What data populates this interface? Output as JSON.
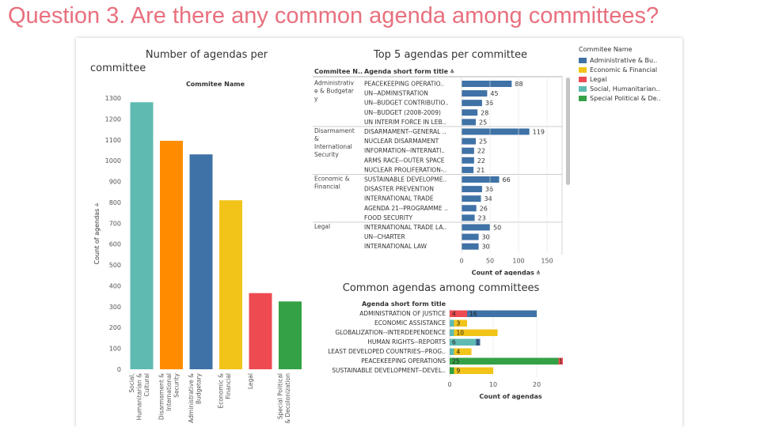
{
  "slide": {
    "title": "Question 3. Are there any common agenda among committees?"
  },
  "colors": {
    "Administrative & Budgetary": "#3f72a6",
    "Economic & Financial": "#f2c419",
    "Legal": "#ee4a52",
    "Social, Humanitarian & Cultural": "#5fbbb2",
    "Special Political & Decolonization": "#35a146",
    "Disarmament & International Security": "#ff8c00"
  },
  "legend": {
    "title": "Commitee Name",
    "items": [
      {
        "label": "Administrative & Bu..",
        "color": "#3f72a6"
      },
      {
        "label": "Economic & Financial",
        "color": "#f2c419"
      },
      {
        "label": "Legal",
        "color": "#ee4a52"
      },
      {
        "label": "Social, Humanitarian..",
        "color": "#5fbbb2"
      },
      {
        "label": "Special Political & De..",
        "color": "#35a146"
      }
    ]
  },
  "chart_data": [
    {
      "type": "bar",
      "title": "Number of agendas per committee",
      "header": "Commitee Name",
      "ylabel": "Count of agendas",
      "ylim": [
        0,
        1300
      ],
      "yticks": [
        0,
        100,
        200,
        300,
        400,
        500,
        600,
        700,
        800,
        900,
        1000,
        1100,
        1200,
        1300
      ],
      "categories": [
        "Social, Humanitarian & Cultural",
        "Disarmament & International Security",
        "Administrative & Budgetary",
        "Economic & Financial",
        "Legal",
        "Special Political & Decolonization"
      ],
      "category_labels": [
        [
          "Social,",
          "Humanitarian &",
          "Cultural"
        ],
        [
          "Disarmament &",
          "International",
          "Security"
        ],
        [
          "Administrative &",
          "Budgetary"
        ],
        [
          "Economic &",
          "Financial"
        ],
        [
          "Legal"
        ],
        [
          "Special Political",
          "& Decolonization"
        ]
      ],
      "values": [
        1280,
        1095,
        1030,
        810,
        365,
        325
      ],
      "grid": false
    },
    {
      "type": "bar",
      "title": "Top 5 agendas per committee",
      "col_headers": [
        "Commitee N..",
        "Agenda short form title"
      ],
      "xlabel": "Count of agendas",
      "xlim": [
        0,
        170
      ],
      "xticks": [
        0,
        50,
        100,
        150
      ],
      "groups": [
        {
          "committee": [
            "Administrativ",
            "e & Budgetar",
            "y"
          ],
          "committee_full": "Administrative & Budgetary",
          "rows": [
            {
              "agenda": "PEACEKEEPING OPERATIO..",
              "value": 88
            },
            {
              "agenda": "UN--ADMINISTRATION",
              "value": 45
            },
            {
              "agenda": "UN--BUDGET CONTRIBUTIO..",
              "value": 36
            },
            {
              "agenda": "UN--BUDGET (2008-2009)",
              "value": 28
            },
            {
              "agenda": "UN INTERIM FORCE IN LEB..",
              "value": 25
            }
          ]
        },
        {
          "committee": [
            "Disarmament",
            "&",
            "International",
            "Security"
          ],
          "committee_full": "Disarmament & International Security",
          "rows": [
            {
              "agenda": "DISARMAMENT--GENERAL ..",
              "value": 119
            },
            {
              "agenda": "NUCLEAR DISARMAMENT",
              "value": 25
            },
            {
              "agenda": "INFORMATION--INTERNATI..",
              "value": 22
            },
            {
              "agenda": "ARMS RACE--OUTER SPACE",
              "value": 22
            },
            {
              "agenda": "NUCLEAR PROLIFERATION-..",
              "value": 21
            }
          ]
        },
        {
          "committee": [
            "Economic &",
            "Financial"
          ],
          "committee_full": "Economic & Financial",
          "rows": [
            {
              "agenda": "SUSTAINABLE DEVELOPME..",
              "value": 66
            },
            {
              "agenda": "DISASTER PREVENTION",
              "value": 36
            },
            {
              "agenda": "INTERNATIONAL TRADE",
              "value": 34
            },
            {
              "agenda": "AGENDA 21--PROGRAMME ..",
              "value": 26
            },
            {
              "agenda": "FOOD SECURITY",
              "value": 23
            }
          ]
        },
        {
          "committee": [
            "Legal"
          ],
          "committee_full": "Legal",
          "rows": [
            {
              "agenda": "INTERNATIONAL TRADE LA..",
              "value": 50
            },
            {
              "agenda": "UN--CHARTER",
              "value": 30
            },
            {
              "agenda": "INTERNATIONAL LAW",
              "value": 30
            }
          ]
        }
      ]
    },
    {
      "type": "bar",
      "stacked": true,
      "orientation": "horizontal",
      "title": "Common agendas among committees",
      "header": "Agenda short form title",
      "xlabel": "Count of agendas",
      "xlim": [
        0,
        27
      ],
      "xticks": [
        0,
        10,
        20
      ],
      "categories": [
        "ADMINISTRATION OF JUSTICE",
        "ECONOMIC ASSISTANCE",
        "GLOBALIZATION--INTERDEPENDENCE",
        "HUMAN RIGHTS--REPORTS",
        "LEAST DEVELOPED COUNTRIES--PROG..",
        "PEACEKEEPING OPERATIONS",
        "SUSTAINABLE DEVELOPMENT--DEVEL.."
      ],
      "stacks": [
        [
          {
            "committee": "Legal",
            "value": 4
          },
          {
            "committee": "Administrative & Budgetary",
            "value": 16
          }
        ],
        [
          {
            "committee": "Social, Humanitarian & Cultural",
            "value": 1
          },
          {
            "committee": "Economic & Financial",
            "value": 3
          }
        ],
        [
          {
            "committee": "Social, Humanitarian & Cultural",
            "value": 1
          },
          {
            "committee": "Economic & Financial",
            "value": 10
          }
        ],
        [
          {
            "committee": "Social, Humanitarian & Cultural",
            "value": 6
          },
          {
            "committee": "Administrative & Budgetary",
            "value": 1
          }
        ],
        [
          {
            "committee": "Social, Humanitarian & Cultural",
            "value": 1
          },
          {
            "committee": "Economic & Financial",
            "value": 4
          }
        ],
        [
          {
            "committee": "Special Political & Decolonization",
            "value": 25
          },
          {
            "committee": "Legal",
            "value": 1
          }
        ],
        [
          {
            "committee": "Special Political & Decolonization",
            "value": 1
          },
          {
            "committee": "Economic & Financial",
            "value": 9
          }
        ]
      ],
      "label_threshold": 2
    }
  ]
}
